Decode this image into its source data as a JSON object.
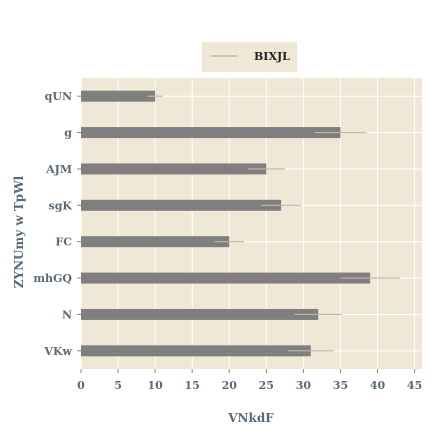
{
  "chart_data": {
    "type": "bar",
    "orientation": "horizontal",
    "categories": [
      "qUN",
      "g",
      "AJM",
      "sgK",
      "FC",
      "mhGQ",
      "N",
      "VKw"
    ],
    "series": [
      {
        "name": "BIXJL",
        "values": [
          10,
          35,
          25,
          27,
          20,
          39,
          32,
          31
        ],
        "errors": [
          1,
          3.5,
          2.5,
          2.7,
          2,
          4,
          3.2,
          3.1
        ]
      }
    ],
    "xlabel": "VNkdF",
    "ylabel": "ZYNUmy w TpWl",
    "xlim": [
      0,
      46
    ],
    "xticks": [
      0,
      5,
      10,
      15,
      20,
      25,
      30,
      35,
      40,
      45
    ],
    "grid": true,
    "legend": "top-center",
    "colors": {
      "bar": "#7f7f7f",
      "error": "#bdb9aa",
      "plot_bg": "#efe8d6",
      "legend_bg": "#efe8d6",
      "grid": "#ffffff",
      "text": "#5a6b78"
    }
  }
}
